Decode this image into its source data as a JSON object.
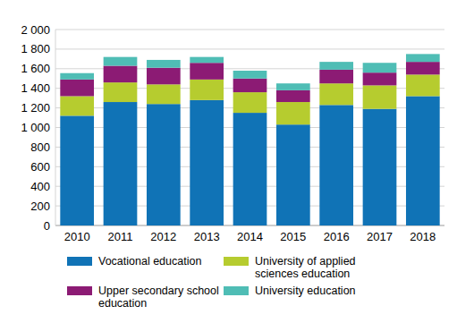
{
  "chart_data": {
    "type": "bar",
    "stacked": true,
    "grid": true,
    "legend": "bottom",
    "categories": [
      "2010",
      "2011",
      "2012",
      "2013",
      "2014",
      "2015",
      "2016",
      "2017",
      "2018"
    ],
    "series": [
      {
        "name": "Vocational education",
        "color": "#1073b6",
        "values": [
          1120,
          1260,
          1240,
          1280,
          1150,
          1030,
          1230,
          1190,
          1320
        ]
      },
      {
        "name": "University of applied sciences education",
        "color": "#b6cc2f",
        "values": [
          200,
          200,
          200,
          210,
          210,
          230,
          220,
          240,
          220
        ]
      },
      {
        "name": "Upper secondary school education",
        "color": "#8c1b74",
        "values": [
          170,
          170,
          170,
          170,
          140,
          120,
          140,
          130,
          130
        ]
      },
      {
        "name": "University education",
        "color": "#4fbdb5",
        "values": [
          65,
          90,
          80,
          60,
          80,
          70,
          80,
          100,
          80
        ]
      }
    ],
    "ylim": [
      0,
      2000
    ],
    "yticks": [
      0,
      200,
      400,
      600,
      800,
      {
        "value": 1000,
        "label": "1 000"
      },
      {
        "value": 1200,
        "label": "1 200"
      },
      {
        "value": 1400,
        "label": "1 400"
      },
      {
        "value": 1600,
        "label": "1 600"
      },
      {
        "value": 1800,
        "label": "1 800"
      },
      {
        "value": 2000,
        "label": "2 000"
      }
    ]
  }
}
